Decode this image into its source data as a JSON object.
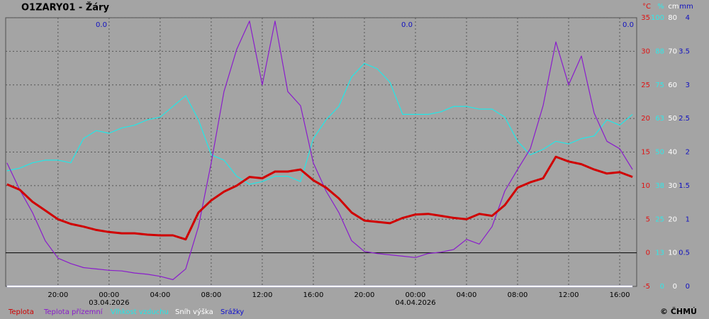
{
  "chart_data": {
    "type": "line",
    "title": "O1ZARY01 - Žáry",
    "x": [
      -8,
      -7,
      -6,
      -5,
      -4,
      -3,
      -2,
      -1,
      0,
      1,
      2,
      3,
      4,
      5,
      6,
      7,
      8,
      9,
      10,
      11,
      12,
      13,
      14,
      15,
      16,
      17,
      18,
      19,
      20,
      21,
      22,
      23,
      24,
      25,
      26,
      27,
      28,
      29,
      30,
      31,
      32,
      33,
      34,
      35,
      36,
      37,
      38,
      39,
      40,
      41
    ],
    "xlim": [
      -8.1,
      41.33
    ],
    "xticks": [
      {
        "value": -4,
        "label": "20:00"
      },
      {
        "value": 0,
        "label": "00:00"
      },
      {
        "value": 4,
        "label": "04:00"
      },
      {
        "value": 8,
        "label": "08:00"
      },
      {
        "value": 12,
        "label": "12:00"
      },
      {
        "value": 16,
        "label": "16:00"
      },
      {
        "value": 20,
        "label": "20:00"
      },
      {
        "value": 24,
        "label": "00:00"
      },
      {
        "value": 28,
        "label": "04:00"
      },
      {
        "value": 32,
        "label": "08:00"
      },
      {
        "value": 36,
        "label": "12:00"
      },
      {
        "value": 40,
        "label": "16:00"
      }
    ],
    "dates": [
      {
        "value": 0,
        "label": "03.04.2026"
      },
      {
        "value": 24,
        "label": "04.04.2026"
      }
    ],
    "y_label": "°C",
    "y2_label": "%",
    "y3_label": "cm",
    "y4_label": "mm",
    "ylim": [
      -5,
      35
    ],
    "yticks": [
      35,
      30,
      25,
      20,
      15,
      10,
      5,
      0,
      -5
    ],
    "y2lim": [
      0,
      100
    ],
    "y2ticks": [
      100,
      {
        "value": 87.5,
        "label": "88"
      },
      75,
      {
        "value": 62.5,
        "label": "63"
      },
      50,
      {
        "value": 37.5,
        "label": "38"
      },
      25,
      {
        "value": 12.5,
        "label": "13"
      },
      0
    ],
    "y3lim": [
      0,
      80
    ],
    "y3ticks": [
      80,
      70,
      60,
      50,
      40,
      30,
      20,
      10,
      0
    ],
    "y4lim": [
      0,
      4
    ],
    "y4ticks": [
      4,
      3.5,
      3,
      2.5,
      2,
      1.5,
      1,
      0.5,
      0
    ],
    "grid": true,
    "precip_totals": [
      "0.0",
      "0.0",
      "0.0"
    ],
    "series": [
      {
        "name": "Teplota",
        "color": "#d00000",
        "axis": "y",
        "values": [
          10.2,
          9.4,
          7.6,
          6.3,
          5.0,
          4.3,
          3.9,
          3.4,
          3.1,
          2.9,
          2.9,
          2.7,
          2.6,
          2.6,
          2.0,
          6.0,
          7.8,
          9.1,
          10.0,
          11.3,
          11.1,
          12.1,
          12.1,
          12.4,
          10.8,
          9.7,
          8.1,
          6.0,
          4.8,
          4.6,
          4.4,
          5.2,
          5.7,
          5.8,
          5.5,
          5.2,
          5.0,
          5.8,
          5.5,
          7.1,
          9.7,
          10.5,
          11.1,
          14.3,
          13.6,
          13.2,
          12.4,
          11.8,
          12.0,
          11.3
        ]
      },
      {
        "name": "Teplota přízemní",
        "color": "#8a1ccc",
        "axis": "y",
        "values": [
          13.4,
          9.4,
          6.0,
          1.8,
          -0.8,
          -1.6,
          -2.2,
          -2.4,
          -2.6,
          -2.7,
          -3.0,
          -3.2,
          -3.5,
          -4.0,
          -2.4,
          3.9,
          13.4,
          24.0,
          30.3,
          34.5,
          25.0,
          34.5,
          24.0,
          21.9,
          13.4,
          9.2,
          6.0,
          1.8,
          0.2,
          -0.1,
          -0.3,
          -0.5,
          -0.7,
          -0.1,
          0.1,
          0.5,
          2.0,
          1.3,
          3.9,
          9.2,
          12.4,
          15.5,
          21.9,
          31.4,
          25.0,
          29.3,
          20.8,
          16.6,
          15.5,
          12.4
        ]
      },
      {
        "name": "Vlhkost vzduchu",
        "color": "#20e8e8",
        "axis": "y2",
        "values": [
          43,
          44,
          46,
          47,
          47,
          46,
          55,
          58,
          57,
          59,
          60,
          62,
          63,
          67,
          71,
          62,
          49,
          47,
          41,
          38,
          39,
          41,
          41,
          39,
          55,
          62,
          67,
          78,
          83,
          81,
          76,
          64,
          64,
          64,
          65,
          67,
          67,
          66,
          66,
          63,
          54,
          49,
          51,
          54,
          53,
          55,
          56,
          62,
          60,
          64
        ]
      },
      {
        "name": "Sníh výška",
        "color": "#ffffff",
        "axis": "y3",
        "values": [
          0,
          0,
          0,
          0,
          0,
          0,
          0,
          0,
          0,
          0,
          0,
          0,
          0,
          0,
          0,
          0,
          0,
          0,
          0,
          0,
          0,
          0,
          0,
          0,
          0,
          0,
          0,
          0,
          0,
          0,
          0,
          0,
          0,
          0,
          0,
          0,
          0,
          0,
          0,
          0,
          0,
          0,
          0,
          0,
          0,
          0,
          0,
          0,
          0,
          0
        ]
      },
      {
        "name": "Srážky",
        "color": "#1a1aa8",
        "axis": "y4",
        "values": [
          0,
          0,
          0,
          0,
          0,
          0,
          0,
          0,
          0,
          0,
          0,
          0,
          0,
          0,
          0,
          0,
          0,
          0,
          0,
          0,
          0,
          0,
          0,
          0,
          0,
          0,
          0,
          0,
          0,
          0,
          0,
          0,
          0,
          0,
          0,
          0,
          0,
          0,
          0,
          0,
          0,
          0,
          0,
          0,
          0,
          0,
          0,
          0,
          0,
          0
        ]
      }
    ],
    "copyright": "© ČHMÚ"
  }
}
